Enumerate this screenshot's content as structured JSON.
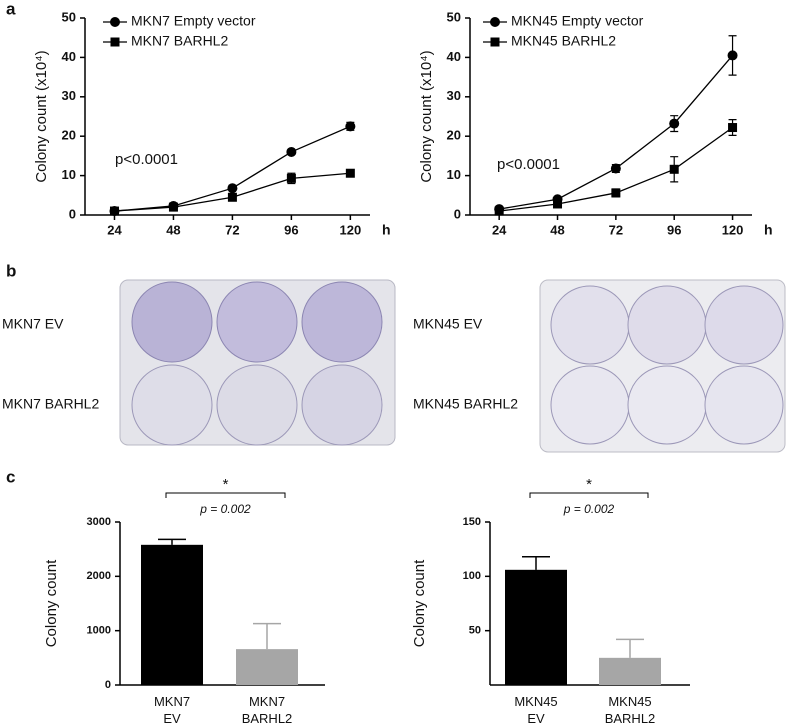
{
  "panels": [
    "a",
    "b",
    "c"
  ],
  "photo_labels": [
    "MKN7  EV",
    "MKN7 BARHL2",
    "MKN45  EV",
    "MKN45 BARHL2"
  ],
  "chart_data": [
    {
      "type": "line",
      "y_label": "Colony count (x10⁴)",
      "x_unit": "h",
      "annotation": "p<0.0001",
      "x": [
        24,
        48,
        72,
        96,
        120
      ],
      "xlim": [
        12,
        128
      ],
      "xticks": [
        24,
        48,
        72,
        96,
        120
      ],
      "ylim": [
        0,
        50
      ],
      "yticks": [
        0,
        10,
        20,
        30,
        40,
        50
      ],
      "legend": "upper left",
      "series": [
        {
          "name": "MKN7 Empty vector",
          "marker": "circle",
          "color": "#000000",
          "values": [
            1,
            2.3,
            6.8,
            16,
            22.5
          ],
          "errors": [
            0.3,
            0.3,
            0.5,
            0.6,
            1
          ]
        },
        {
          "name": "MKN7 BARHL2",
          "marker": "square",
          "color": "#000000",
          "values": [
            1,
            2,
            4.5,
            9.3,
            10.6
          ],
          "errors": [
            0.2,
            0.3,
            0.4,
            1.3,
            0.8
          ]
        }
      ]
    },
    {
      "type": "line",
      "y_label": "Colony count (x10⁴)",
      "x_unit": "h",
      "annotation": "p<0.0001",
      "x": [
        24,
        48,
        72,
        96,
        120
      ],
      "xlim": [
        12,
        128
      ],
      "xticks": [
        24,
        48,
        72,
        96,
        120
      ],
      "ylim": [
        0,
        50
      ],
      "yticks": [
        0,
        10,
        20,
        30,
        40,
        50
      ],
      "legend": "upper left",
      "series": [
        {
          "name": "MKN45 Empty vector",
          "marker": "circle",
          "color": "#000000",
          "values": [
            1.5,
            4,
            11.8,
            23.2,
            40.5
          ],
          "errors": [
            0.3,
            0.5,
            1,
            2,
            5
          ]
        },
        {
          "name": "MKN45 BARHL2",
          "marker": "square",
          "color": "#000000",
          "values": [
            1,
            2.8,
            5.6,
            11.6,
            22.2
          ],
          "errors": [
            0.3,
            0.5,
            1,
            3.2,
            2
          ]
        }
      ]
    },
    {
      "type": "bar",
      "y_label": "Colony count",
      "categories": [
        "MKN7\nEV",
        "MKN7\nBARHL2"
      ],
      "values": [
        2580,
        660
      ],
      "errors": [
        100,
        470
      ],
      "colors": [
        "#000000",
        "#a6a6a6"
      ],
      "ylim": [
        0,
        3000
      ],
      "yticks": [
        0,
        1000,
        2000,
        3000
      ],
      "significance": {
        "symbol": "*",
        "label": "p = 0.002"
      }
    },
    {
      "type": "bar",
      "y_label": "Colony count",
      "categories": [
        "MKN45\nEV",
        "MKN45\nBARHL2"
      ],
      "values": [
        106,
        25
      ],
      "errors": [
        12,
        17
      ],
      "colors": [
        "#000000",
        "#a6a6a6"
      ],
      "ylim": [
        0,
        150
      ],
      "yticks": [
        50,
        100,
        150
      ],
      "significance": {
        "symbol": "*",
        "label": "p = 0.002"
      }
    }
  ]
}
